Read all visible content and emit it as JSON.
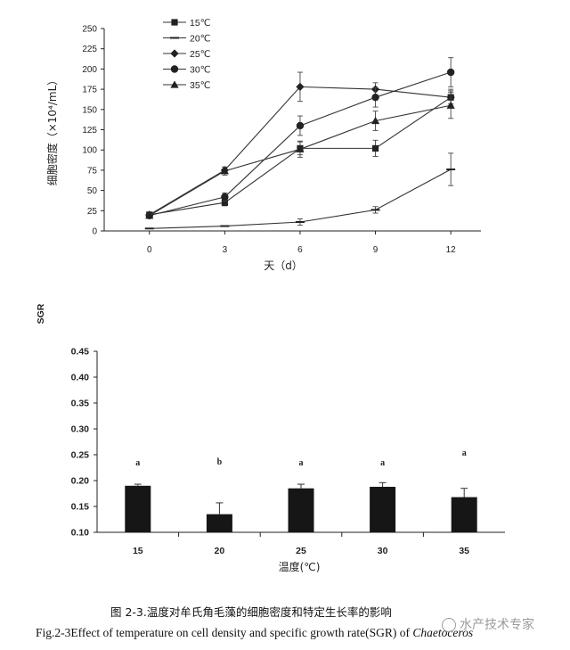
{
  "chart_data": [
    {
      "type": "line",
      "ylabel": "细胞密度（×10⁴/mL）",
      "xlabel": "天（d）",
      "x": [
        0,
        3,
        6,
        9,
        12
      ],
      "xlim": [
        -1.8,
        13.2
      ],
      "ylim": [
        0,
        250
      ],
      "yticks": [
        0,
        25,
        50,
        75,
        100,
        125,
        150,
        175,
        200,
        225,
        250
      ],
      "series": [
        {
          "name": "15℃",
          "marker": "square",
          "values": [
            20,
            35,
            102,
            102,
            165
          ],
          "errors": [
            2,
            4,
            8,
            10,
            10
          ]
        },
        {
          "name": "20℃",
          "marker": "dash",
          "values": [
            3,
            6,
            11,
            26,
            76
          ],
          "errors": [
            1,
            1,
            4,
            4,
            20
          ]
        },
        {
          "name": "25℃",
          "marker": "diamond",
          "values": [
            20,
            75,
            178,
            175,
            165
          ],
          "errors": [
            2,
            4,
            18,
            8,
            8
          ]
        },
        {
          "name": "30℃",
          "marker": "circle",
          "values": [
            19,
            42,
            130,
            165,
            196
          ],
          "errors": [
            2,
            5,
            12,
            12,
            18
          ]
        },
        {
          "name": "35℃",
          "marker": "triangle",
          "values": [
            19,
            74,
            101,
            136,
            155
          ],
          "errors": [
            2,
            5,
            10,
            12,
            16
          ]
        }
      ],
      "legend": "top-left"
    },
    {
      "type": "bar",
      "ylabel": "SGR",
      "xlabel": "温度(℃)",
      "categories": [
        "15",
        "20",
        "25",
        "30",
        "35"
      ],
      "values": [
        0.19,
        0.135,
        0.185,
        0.188,
        0.168
      ],
      "errors": [
        0.003,
        0.022,
        0.008,
        0.008,
        0.017
      ],
      "significance": [
        "a",
        "b",
        "a",
        "a",
        "a"
      ],
      "ylim": [
        0.1,
        0.45
      ],
      "yticks": [
        "0.10",
        "0.15",
        "0.20",
        "0.25",
        "0.30",
        "0.35",
        "0.40",
        "0.45"
      ]
    }
  ],
  "caption_cn": "图 2-3.温度对牟氏角毛藻的细胞密度和特定生长率的影响",
  "caption_en_prefix": "Fig.2-3Effect of temperature on cell density and specific growth rate(SGR) of ",
  "caption_en_species": "Chaetoceros",
  "watermark": "水产技术专家"
}
